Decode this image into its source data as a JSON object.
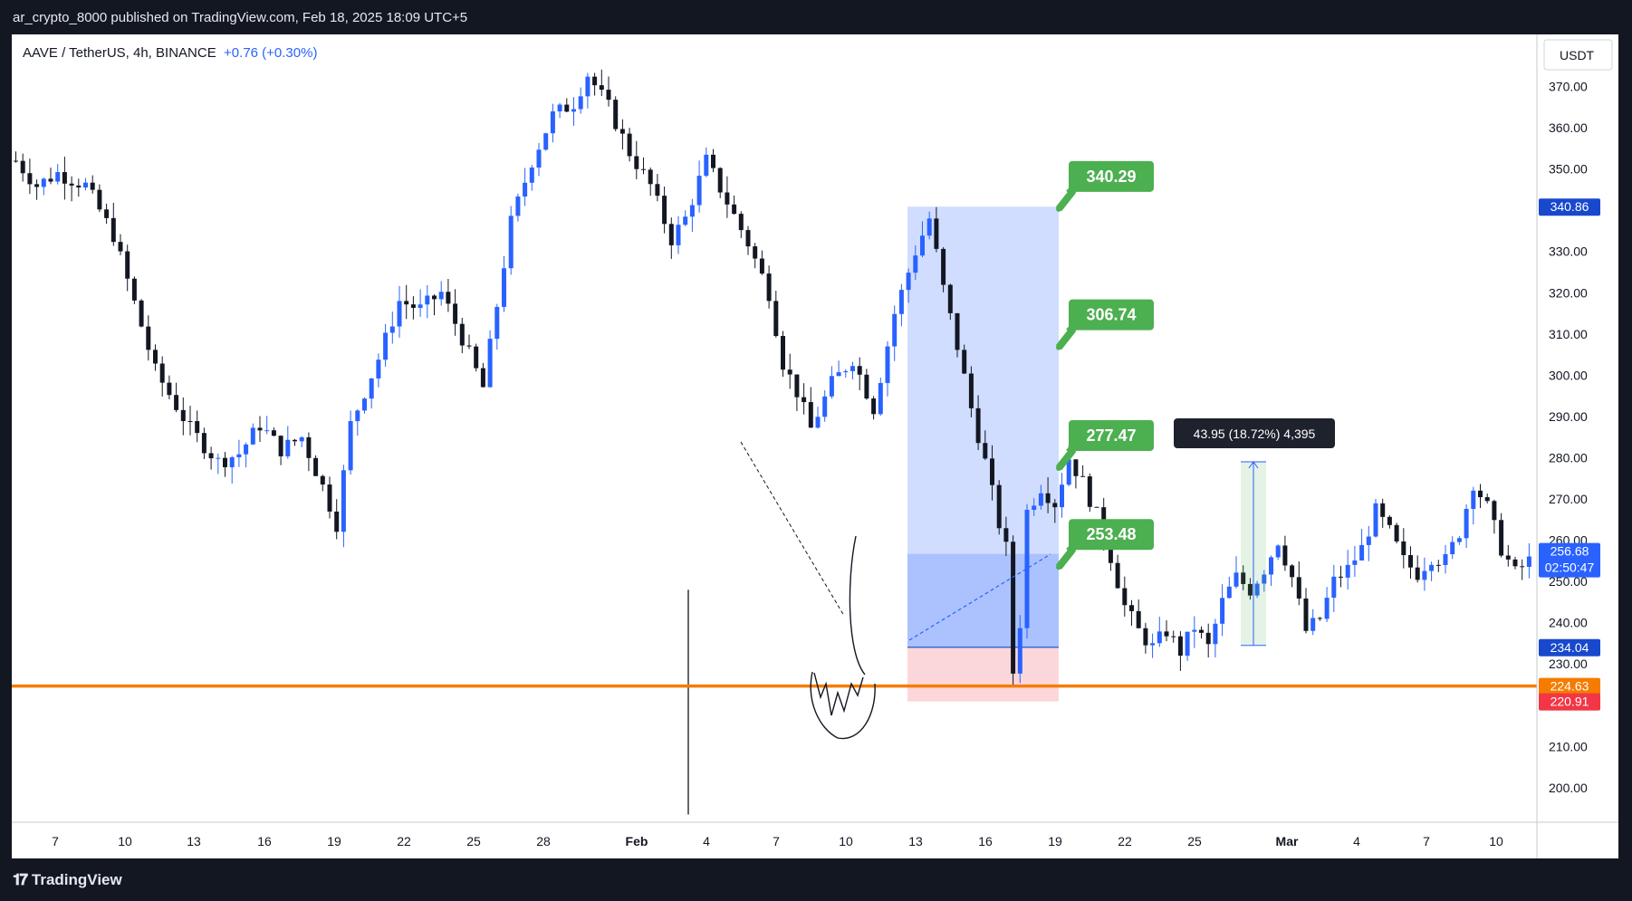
{
  "header": {
    "publisher_line": "ar_crypto_8000 published on TradingView.com, Feb 18, 2025 18:09 UTC+5"
  },
  "legend": {
    "symbol": "AAVE / TetherUS, 4h, BINANCE",
    "change": "+0.76 (+0.30%)"
  },
  "footer": {
    "brand": "TradingView"
  },
  "colors": {
    "up": "#2962ff",
    "down": "#131722",
    "support": "#f57c00",
    "target": "#4caf50",
    "stop": "#f23645",
    "profit_zone": "#aec3ee",
    "loss_zone": "#ffcdd2"
  },
  "chart_data": {
    "type": "candlestick",
    "y_axis": {
      "unit_label": "USDT",
      "ticks": [
        "370.00",
        "360.00",
        "350.00",
        "340.00",
        "330.00",
        "320.00",
        "310.00",
        "300.00",
        "290.00",
        "280.00",
        "270.00",
        "260.00",
        "250.00",
        "240.00",
        "230.00",
        "220.00",
        "210.00",
        "200.00"
      ],
      "range": [
        193,
        378
      ]
    },
    "x_axis": {
      "ticks": [
        "7",
        "10",
        "13",
        "16",
        "19",
        "22",
        "25",
        "28",
        "Feb",
        "4",
        "7",
        "10",
        "13",
        "16",
        "19",
        "22",
        "25",
        "Mar",
        "4",
        "7",
        "10"
      ]
    },
    "price_labels": [
      {
        "text": "340.86",
        "value": 340.86,
        "color": "#1848cc"
      },
      {
        "text": "256.68",
        "value": 256.68,
        "color": "#2962ff",
        "sub": "02:50:47"
      },
      {
        "text": "234.04",
        "value": 234.04,
        "color": "#1848cc"
      },
      {
        "text": "224.63",
        "value": 224.63,
        "color": "#f57c00"
      },
      {
        "text": "220.91",
        "value": 220.91,
        "color": "#f23645"
      }
    ],
    "support_level": 224.63,
    "targets": [
      {
        "text": "340.29",
        "value": 340.29
      },
      {
        "text": "306.74",
        "value": 306.74
      },
      {
        "text": "277.47",
        "value": 277.47
      },
      {
        "text": "253.48",
        "value": 253.48
      }
    ],
    "position": {
      "entry": 234.04,
      "target": 340.86,
      "stop": 220.91,
      "current": 256.68
    },
    "measure": {
      "text": "43.95 (18.72%) 4,395",
      "from": 234.5,
      "to": 279
    },
    "price_path": [
      [
        0,
        352
      ],
      [
        3,
        346
      ],
      [
        6,
        349
      ],
      [
        10,
        346
      ],
      [
        14,
        334
      ],
      [
        20,
        301
      ],
      [
        25,
        287
      ],
      [
        29,
        279
      ],
      [
        32,
        281
      ],
      [
        35,
        288
      ],
      [
        38,
        282
      ],
      [
        41,
        285
      ],
      [
        44,
        273
      ],
      [
        46,
        264
      ],
      [
        48,
        288
      ],
      [
        52,
        304
      ],
      [
        55,
        318
      ],
      [
        58,
        316
      ],
      [
        61,
        320
      ],
      [
        64,
        309
      ],
      [
        67,
        297
      ],
      [
        71,
        337
      ],
      [
        74,
        352
      ],
      [
        77,
        363
      ],
      [
        80,
        366
      ],
      [
        82,
        373
      ],
      [
        85,
        365
      ],
      [
        88,
        354
      ],
      [
        91,
        346
      ],
      [
        94,
        333
      ],
      [
        96,
        338
      ],
      [
        99,
        352
      ],
      [
        102,
        342
      ],
      [
        105,
        332
      ],
      [
        108,
        320
      ],
      [
        110,
        303
      ],
      [
        112,
        296
      ],
      [
        114,
        287
      ],
      [
        117,
        298
      ],
      [
        120,
        304
      ],
      [
        123,
        292
      ],
      [
        126,
        315
      ],
      [
        129,
        330
      ],
      [
        131,
        338
      ],
      [
        133,
        321
      ],
      [
        135,
        307
      ],
      [
        137,
        292
      ],
      [
        139,
        279
      ],
      [
        141,
        264
      ],
      [
        142,
        258
      ],
      [
        143,
        228
      ],
      [
        144,
        240
      ],
      [
        145,
        267
      ],
      [
        147,
        273
      ],
      [
        149,
        269
      ],
      [
        151,
        280
      ],
      [
        153,
        274
      ],
      [
        155,
        266
      ],
      [
        157,
        256
      ],
      [
        159,
        244
      ],
      [
        161,
        238
      ],
      [
        163,
        234
      ],
      [
        165,
        238
      ],
      [
        167,
        233
      ],
      [
        169,
        239
      ],
      [
        171,
        234
      ],
      [
        173,
        245
      ],
      [
        175,
        251
      ],
      [
        177,
        248
      ],
      [
        179,
        253
      ],
      [
        181,
        260
      ],
      [
        183,
        251
      ],
      [
        185,
        238
      ],
      [
        187,
        241
      ],
      [
        189,
        250
      ],
      [
        191,
        253
      ],
      [
        193,
        258
      ],
      [
        195,
        267
      ],
      [
        197,
        262
      ],
      [
        199,
        255
      ],
      [
        201,
        252
      ],
      [
        203,
        256
      ],
      [
        205,
        255
      ],
      [
        207,
        262
      ],
      [
        209,
        274
      ],
      [
        211,
        268
      ],
      [
        213,
        258
      ],
      [
        215,
        252
      ],
      [
        217,
        255
      ]
    ],
    "candle_count": 218
  }
}
